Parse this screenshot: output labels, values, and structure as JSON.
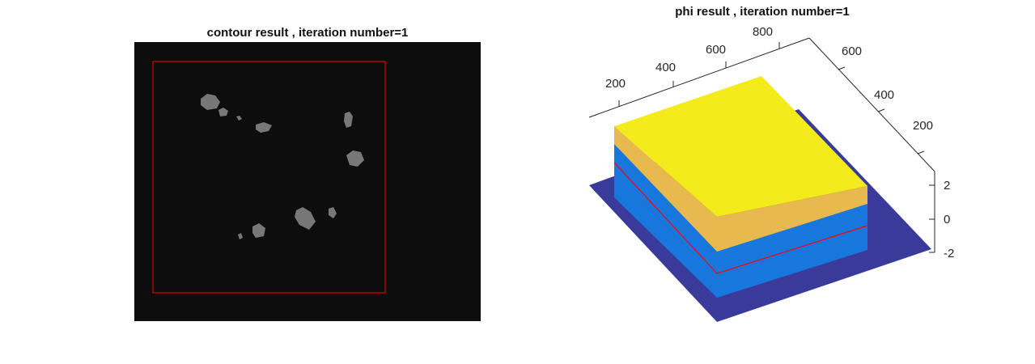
{
  "chart_data": [
    {
      "type": "image",
      "title": "contour result , iteration number=1",
      "contour": {
        "shape": "rectangle",
        "color": "#ff0000"
      },
      "background": "#0d0d0d"
    },
    {
      "type": "surface",
      "title": "phi result , iteration number=1",
      "x_ticks": [
        "200",
        "400",
        "600",
        "800"
      ],
      "y_ticks": [
        "200",
        "400",
        "600"
      ],
      "z_ticks": [
        "-2",
        "0",
        "2"
      ],
      "z_range": [
        -2,
        2
      ],
      "levels": [
        {
          "z": -2,
          "color": "#3a3a9a"
        },
        {
          "z": 0,
          "color": "#1877dc"
        },
        {
          "z": 1,
          "color": "#e8b94e"
        },
        {
          "z": 2,
          "color": "#f3eb1c"
        }
      ],
      "contour_level": 0,
      "contour_color": "#ff0000"
    }
  ]
}
